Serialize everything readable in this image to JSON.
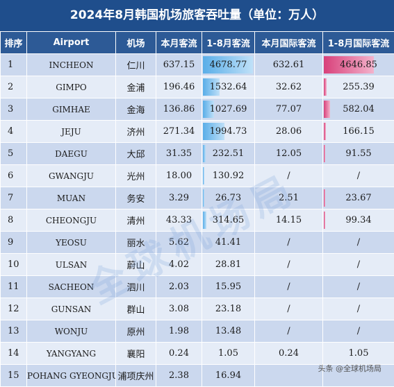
{
  "title": "2024年8月韩国机场旅客吞吐量（单位：万人）",
  "headers": [
    "排序",
    "Airport",
    "机场",
    "本月客流",
    "1-8月客流",
    "本月国际客流",
    "1-8月国际客流"
  ],
  "rows": [
    {
      "rank": "1",
      "airport": "INCHEON",
      "cn": "仁川",
      "month": "637.15",
      "ytd": "4678.77",
      "intl_month": "632.61",
      "intl_ytd": "4646.85",
      "ytd_frac": 1.0,
      "intl_frac": 1.0
    },
    {
      "rank": "2",
      "airport": "GIMPO",
      "cn": "金浦",
      "month": "196.46",
      "ytd": "1532.64",
      "intl_month": "32.62",
      "intl_ytd": "255.39",
      "ytd_frac": 0.3276,
      "intl_frac": 0.055
    },
    {
      "rank": "3",
      "airport": "GIMHAE",
      "cn": "金海",
      "month": "136.86",
      "ytd": "1027.69",
      "intl_month": "77.07",
      "intl_ytd": "582.04",
      "ytd_frac": 0.2196,
      "intl_frac": 0.1253
    },
    {
      "rank": "4",
      "airport": "JEJU",
      "cn": "济州",
      "month": "271.34",
      "ytd": "1994.73",
      "intl_month": "28.06",
      "intl_ytd": "166.15",
      "ytd_frac": 0.4263,
      "intl_frac": 0.0358
    },
    {
      "rank": "5",
      "airport": "DAEGU",
      "cn": "大邱",
      "month": "31.35",
      "ytd": "232.51",
      "intl_month": "12.05",
      "intl_ytd": "91.55",
      "ytd_frac": 0.0497,
      "intl_frac": 0.0197
    },
    {
      "rank": "6",
      "airport": "GWANGJU",
      "cn": "光州",
      "month": "18.00",
      "ytd": "130.92",
      "intl_month": "/",
      "intl_ytd": "/",
      "ytd_frac": 0.028,
      "intl_frac": 0
    },
    {
      "rank": "7",
      "airport": "MUAN",
      "cn": "务安",
      "month": "3.29",
      "ytd": "26.73",
      "intl_month": "2.51",
      "intl_ytd": "23.67",
      "ytd_frac": 0.0057,
      "intl_frac": 0.0051
    },
    {
      "rank": "8",
      "airport": "CHEONGJU",
      "cn": "清州",
      "month": "43.33",
      "ytd": "314.65",
      "intl_month": "14.15",
      "intl_ytd": "99.34",
      "ytd_frac": 0.0672,
      "intl_frac": 0.0214
    },
    {
      "rank": "9",
      "airport": "YEOSU",
      "cn": "丽水",
      "month": "5.62",
      "ytd": "41.41",
      "intl_month": "/",
      "intl_ytd": "/",
      "ytd_frac": 0,
      "intl_frac": 0
    },
    {
      "rank": "10",
      "airport": "ULSAN",
      "cn": "蔚山",
      "month": "4.02",
      "ytd": "28.81",
      "intl_month": "/",
      "intl_ytd": "/",
      "ytd_frac": 0,
      "intl_frac": 0
    },
    {
      "rank": "11",
      "airport": "SACHEON",
      "cn": "泗川",
      "month": "2.03",
      "ytd": "15.95",
      "intl_month": "/",
      "intl_ytd": "/",
      "ytd_frac": 0,
      "intl_frac": 0
    },
    {
      "rank": "12",
      "airport": "GUNSAN",
      "cn": "群山",
      "month": "3.08",
      "ytd": "23.18",
      "intl_month": "/",
      "intl_ytd": "/",
      "ytd_frac": 0,
      "intl_frac": 0
    },
    {
      "rank": "13",
      "airport": "WONJU",
      "cn": "原州",
      "month": "1.98",
      "ytd": "13.48",
      "intl_month": "/",
      "intl_ytd": "/",
      "ytd_frac": 0,
      "intl_frac": 0
    },
    {
      "rank": "14",
      "airport": "YANGYANG",
      "cn": "襄阳",
      "month": "0.24",
      "ytd": "1.05",
      "intl_month": "0.24",
      "intl_ytd": "1.05",
      "ytd_frac": 0,
      "intl_frac": 0
    },
    {
      "rank": "15",
      "airport": "POHANG GYEONGJU",
      "cn": "浦项庆州",
      "month": "2.38",
      "ytd": "16.94",
      "intl_month": "",
      "intl_ytd": "",
      "ytd_frac": 0,
      "intl_frac": 0
    }
  ],
  "watermark": "全球机场局",
  "credit": "头条 @全球机场局",
  "colors": {
    "title_bg": "#1f4e8c",
    "header_bg": "#2d5a96",
    "row_odd": "#cbd8ee",
    "row_even": "#e5ecf7",
    "bar_blue": "#5aaee8",
    "bar_pink": "#d8407a"
  }
}
